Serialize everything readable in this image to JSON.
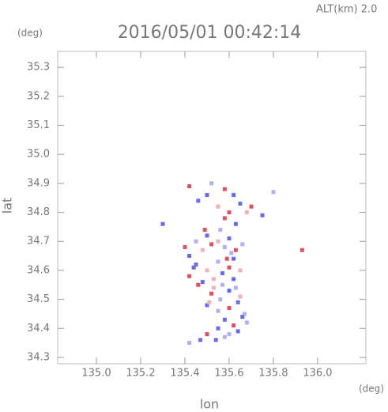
{
  "chart_data": {
    "type": "scatter",
    "title": "2016/05/01 00:42:14",
    "subtitle": "ALT(km)  2.0",
    "x_label": "lon",
    "y_label": "lat",
    "x_unit": "(deg)",
    "y_unit": "(deg)",
    "xlim": [
      134.825,
      136.218
    ],
    "ylim": [
      34.278,
      35.355
    ],
    "xticks": [
      {
        "value": 135.0,
        "label": "135.0"
      },
      135.2,
      135.4,
      135.6,
      135.8,
      {
        "value": 136.0,
        "label": "136.0"
      }
    ],
    "yticks": [
      34.3,
      34.4,
      34.5,
      34.6,
      34.7,
      34.8,
      34.9,
      {
        "value": 35.0,
        "label": "35.0"
      },
      35.1,
      35.2,
      35.3
    ],
    "x": [
      135.42,
      135.5,
      135.52,
      135.58,
      135.62,
      135.46,
      135.55,
      135.6,
      135.65,
      135.7,
      135.75,
      135.8,
      135.63,
      135.58,
      135.68,
      135.3,
      135.93,
      135.4,
      135.42,
      135.45,
      135.48,
      135.5,
      135.52,
      135.55,
      135.58,
      135.6,
      135.63,
      135.66,
      135.45,
      135.5,
      135.55,
      135.6,
      135.62,
      135.42,
      135.48,
      135.53,
      135.57,
      135.62,
      135.52,
      135.56,
      135.6,
      135.65,
      135.5,
      135.55,
      135.6,
      135.64,
      135.67,
      135.58,
      135.62,
      135.66,
      135.68,
      135.55,
      135.6,
      135.64,
      135.5,
      135.54,
      135.58,
      135.47,
      135.42,
      135.53,
      135.57,
      135.61,
      135.65,
      135.49,
      135.56,
      135.59,
      135.63,
      135.44,
      135.51,
      135.46
    ],
    "y": [
      34.89,
      34.86,
      34.9,
      34.88,
      34.86,
      34.84,
      34.82,
      34.8,
      34.83,
      34.82,
      34.79,
      34.87,
      34.76,
      34.78,
      34.8,
      34.76,
      34.67,
      34.68,
      34.65,
      34.7,
      34.67,
      34.72,
      34.69,
      34.7,
      34.68,
      34.71,
      34.67,
      34.69,
      34.62,
      34.6,
      34.63,
      34.61,
      34.64,
      34.58,
      34.56,
      34.57,
      34.55,
      34.57,
      34.52,
      34.5,
      34.53,
      34.51,
      34.48,
      34.46,
      34.47,
      34.49,
      34.45,
      34.43,
      34.41,
      34.44,
      34.42,
      34.4,
      34.38,
      34.39,
      34.38,
      34.36,
      34.37,
      34.36,
      34.35,
      34.54,
      34.59,
      34.66,
      34.6,
      34.74,
      34.74,
      34.64,
      34.54,
      34.61,
      34.49,
      34.55
    ],
    "colors": [
      "#e05060",
      "#6a6ae8",
      "#b0b0f0",
      "#e05060",
      "#6a6ae8",
      "#6a6ae8",
      "#f0b0b8",
      "#e05060",
      "#6a6ae8",
      "#e05060",
      "#6a6ae8",
      "#b0b0f0",
      "#6a6ae8",
      "#e05060",
      "#f0b0b8",
      "#6a6ae8",
      "#e05060",
      "#e05060",
      "#6a6ae8",
      "#b0b0f0",
      "#f0b0b8",
      "#6a6ae8",
      "#e05060",
      "#f0b0b8",
      "#b0b0f0",
      "#6a6ae8",
      "#e05060",
      "#b0b0f0",
      "#6a6ae8",
      "#f0b0b8",
      "#b0b0f0",
      "#e05060",
      "#6a6ae8",
      "#e05060",
      "#6a6ae8",
      "#f0b0b8",
      "#b0b0f0",
      "#6a6ae8",
      "#e05060",
      "#b0b0f0",
      "#6a6ae8",
      "#f0b0b8",
      "#6a6ae8",
      "#b0b0f0",
      "#e05060",
      "#6a6ae8",
      "#b0b0f0",
      "#6a6ae8",
      "#e05060",
      "#6a6ae8",
      "#b0b0f0",
      "#6a6ae8",
      "#b0b0f0",
      "#6a6ae8",
      "#e05060",
      "#6a6ae8",
      "#b0b0f0",
      "#6a6ae8",
      "#b0b0f0",
      "#f0b0b8",
      "#6a6ae8",
      "#b0b0f0",
      "#f0b0b8",
      "#e05060",
      "#b0b0f0",
      "#e05060",
      "#b0b0f0",
      "#6a6ae8",
      "#f0b0b8",
      "#e05060"
    ]
  }
}
